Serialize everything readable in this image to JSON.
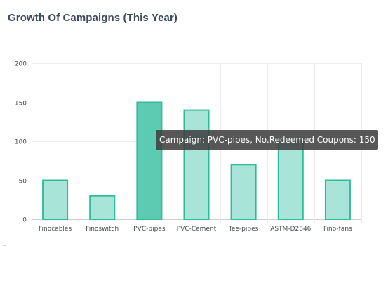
{
  "title": "Growth Of Campaigns (This Year)",
  "tooltip": "Campaign: PVC-pipes, No.Redeemed Coupons: 150",
  "colors": {
    "bar_fill": "#a8e4d8",
    "bar_fill_active": "#5ccbb1",
    "bar_stroke": "#2fbc96",
    "grid": "#ececec",
    "axis": "#cfcfcf",
    "title": "#3d4a5c",
    "tooltip_bg": "#404040"
  },
  "chart_data": {
    "type": "bar",
    "categories": [
      "Finocables",
      "Finoswitch",
      "PVC-pipes",
      "PVC-Cement",
      "Tee-pipes",
      "ASTM-D2846",
      "Fino-fans"
    ],
    "values": [
      50,
      30,
      150,
      140,
      70,
      100,
      50
    ],
    "ylim": [
      0,
      200
    ],
    "yticks": [
      0,
      50,
      100,
      150,
      200
    ],
    "active_index": 2,
    "grid": true,
    "xlabel": "",
    "ylabel": ""
  }
}
